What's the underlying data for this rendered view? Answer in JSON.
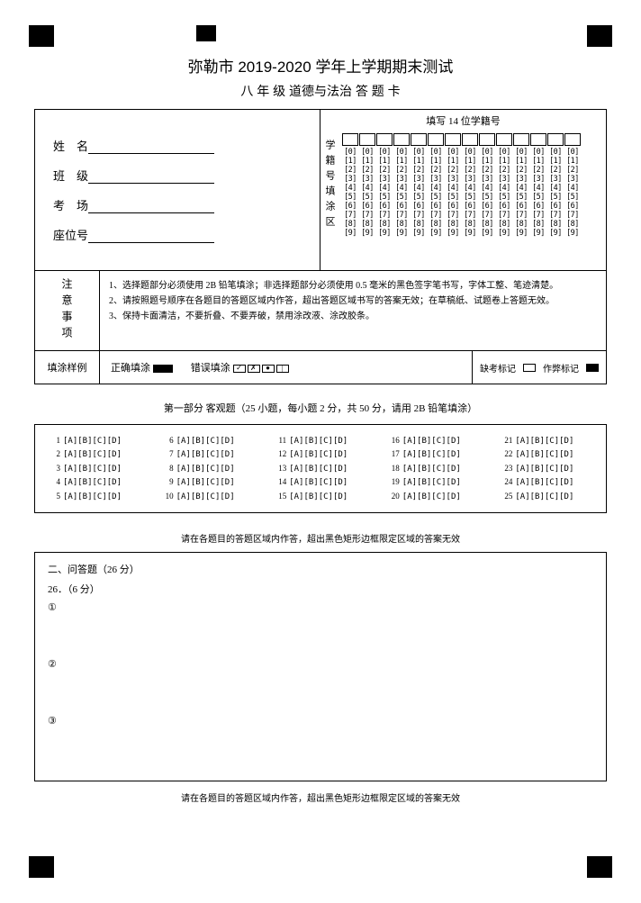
{
  "markers": true,
  "title_line1": "弥勒市 2019-2020 学年上学期期末测试",
  "title_line2": "八 年 级   道德与法治  答 题 卡",
  "info": {
    "name_label": "姓　名",
    "class_label": "班　级",
    "room_label": "考　场",
    "seat_label": "座位号"
  },
  "student_id": {
    "title": "填写 14 位学籍号",
    "vlabel": "学籍号填涂区",
    "digits": 14,
    "rows": [
      "0",
      "1",
      "2",
      "3",
      "4",
      "5",
      "6",
      "7",
      "8",
      "9"
    ]
  },
  "notice": {
    "label": "注意事项",
    "items": [
      "1、选择题部分必须使用 2B 铅笔填涂；非选择题部分必须使用 0.5 毫米的黑色签字笔书写，字体工整、笔迹清楚。",
      "2、请按照题号顺序在各题目的答题区域内作答，超出答题区域书写的答案无效；在草稿纸、试题卷上答题无效。",
      "3、保持卡面清洁，不要折叠、不要弄破，禁用涂改液、涂改胶条。"
    ]
  },
  "sample": {
    "label": "填涂样例",
    "correct_label": "正确填涂",
    "wrong_label": "错误填涂",
    "wrong_marks": [
      "✓",
      "✗",
      "●",
      "|"
    ],
    "absent_label": "缺考标记",
    "cheat_label": "作弊标记"
  },
  "mcq": {
    "section_title": "第一部分  客观题（25 小题，每小题 2 分，共 50 分，请用 2B 铅笔填涂）",
    "options_text": "[A][B][C][D]",
    "columns": [
      [
        1,
        2,
        3,
        4,
        5
      ],
      [
        6,
        7,
        8,
        9,
        10
      ],
      [
        11,
        12,
        13,
        14,
        15
      ],
      [
        16,
        17,
        18,
        19,
        20
      ],
      [
        21,
        22,
        23,
        24,
        25
      ]
    ]
  },
  "hint_text": "请在各题目的答题区域内作答，超出黑色矩形边框限定区域的答案无效",
  "essay": {
    "heading": "二、问答题（26 分）",
    "q_label": "26．（6 分）",
    "subs": [
      "①",
      "②",
      "③"
    ]
  }
}
